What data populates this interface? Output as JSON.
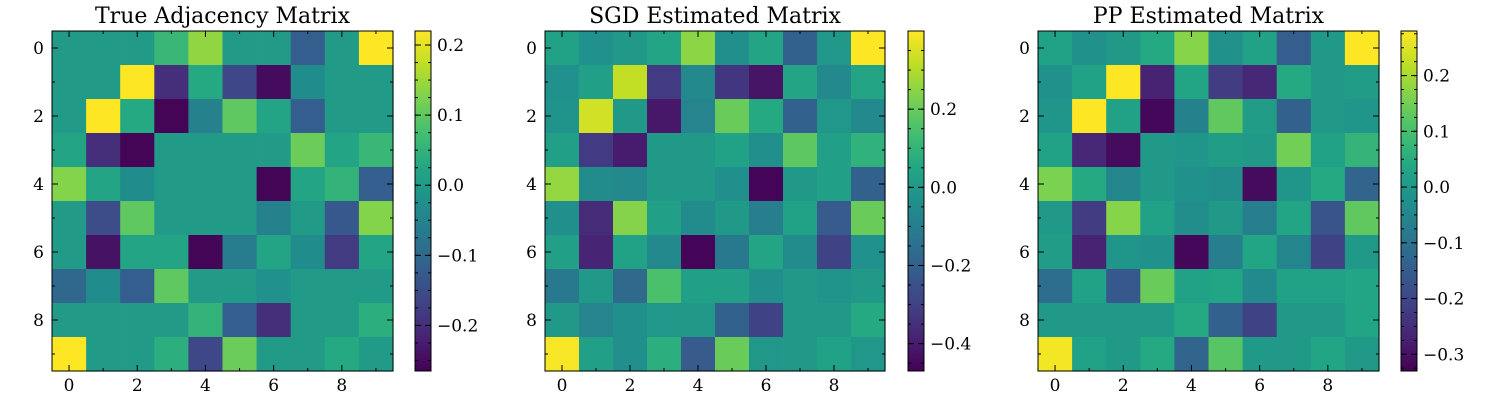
{
  "chart_data": [
    {
      "type": "heatmap",
      "title": "True Adjacency Matrix",
      "x_ticks": [
        "0",
        "2",
        "4",
        "6",
        "8"
      ],
      "y_ticks": [
        "0",
        "2",
        "4",
        "6",
        "8"
      ],
      "grid": false,
      "colormap": "viridis",
      "colorbar": {
        "vmin": -0.265,
        "vmax": 0.22,
        "ticks": [
          -0.2,
          -0.1,
          0.0,
          0.1,
          0.2
        ],
        "tick_labels": [
          "−0.2",
          "−0.1",
          "0.0",
          "0.1",
          "0.2"
        ]
      },
      "matrix": [
        [
          0,
          0,
          0,
          0.06,
          0.14,
          0,
          0,
          -0.12,
          0,
          0.22
        ],
        [
          0,
          0,
          0.22,
          -0.2,
          0.03,
          -0.16,
          -0.25,
          -0.03,
          0,
          0
        ],
        [
          0,
          0.22,
          0.03,
          -0.26,
          -0.05,
          0.1,
          0.02,
          -0.12,
          0,
          0
        ],
        [
          0.02,
          -0.2,
          -0.26,
          0,
          0,
          0,
          0,
          0.11,
          0.02,
          0.06
        ],
        [
          0.13,
          0.02,
          -0.03,
          0,
          0,
          0,
          -0.26,
          0.02,
          0.05,
          -0.12
        ],
        [
          0,
          -0.15,
          0.1,
          0,
          0,
          0,
          -0.05,
          0,
          -0.13,
          0.13
        ],
        [
          0,
          -0.24,
          0.02,
          0.02,
          -0.26,
          -0.06,
          0.02,
          -0.03,
          -0.18,
          0.02
        ],
        [
          -0.1,
          -0.03,
          -0.12,
          0.1,
          0,
          0,
          -0.02,
          0,
          0,
          0
        ],
        [
          0,
          0,
          0,
          0,
          0.05,
          -0.12,
          -0.2,
          0,
          0,
          0.04
        ],
        [
          0.22,
          0,
          0,
          0.04,
          -0.16,
          0.11,
          0,
          0,
          0.03,
          0
        ]
      ]
    },
    {
      "type": "heatmap",
      "title": "SGD Estimated Matrix",
      "x_ticks": [
        "0",
        "2",
        "4",
        "6",
        "8"
      ],
      "y_ticks": [
        "0",
        "2",
        "4",
        "6",
        "8"
      ],
      "grid": false,
      "colormap": "viridis",
      "colorbar": {
        "vmin": -0.47,
        "vmax": 0.4,
        "ticks": [
          -0.4,
          -0.2,
          0.0,
          0.2
        ],
        "tick_labels": [
          "−0.4",
          "−0.2",
          "0.0",
          "0.2"
        ]
      },
      "matrix": [
        [
          0.03,
          -0.03,
          0,
          0.04,
          0.25,
          -0.04,
          0.04,
          -0.2,
          -0.01,
          0.4
        ],
        [
          -0.03,
          0.02,
          0.32,
          -0.32,
          -0.06,
          -0.33,
          -0.42,
          0.04,
          -0.06,
          0.04
        ],
        [
          -0.02,
          0.34,
          0,
          -0.41,
          -0.08,
          0.2,
          0.06,
          -0.2,
          -0.01,
          -0.06
        ],
        [
          0.02,
          -0.32,
          -0.4,
          0,
          0,
          0.03,
          -0.04,
          0.18,
          0.02,
          0.09
        ],
        [
          0.26,
          -0.05,
          -0.06,
          0,
          0,
          -0.04,
          -0.46,
          0,
          0.02,
          -0.2
        ],
        [
          -0.04,
          -0.36,
          0.24,
          0.02,
          -0.05,
          0,
          -0.1,
          0.03,
          -0.22,
          0.2
        ],
        [
          0.02,
          -0.38,
          0.03,
          -0.06,
          -0.46,
          -0.12,
          0.04,
          -0.05,
          -0.3,
          -0.03
        ],
        [
          -0.12,
          0,
          -0.17,
          0.15,
          0.02,
          0.02,
          -0.04,
          0,
          -0.02,
          0
        ],
        [
          0,
          -0.08,
          -0.04,
          -0.01,
          0,
          -0.2,
          -0.3,
          0,
          0,
          0.06
        ],
        [
          0.39,
          0.02,
          -0.04,
          0.08,
          -0.22,
          0.2,
          -0.01,
          0,
          0.03,
          -0.01
        ]
      ]
    },
    {
      "type": "heatmap",
      "title": "PP Estimated Matrix",
      "x_ticks": [
        "0",
        "2",
        "4",
        "6",
        "8"
      ],
      "y_ticks": [
        "0",
        "2",
        "4",
        "6",
        "8"
      ],
      "grid": false,
      "colormap": "viridis",
      "colorbar": {
        "vmin": -0.33,
        "vmax": 0.28,
        "ticks": [
          -0.3,
          -0.2,
          -0.1,
          0.0,
          0.1,
          0.2
        ],
        "tick_labels": [
          "−0.3",
          "−0.2",
          "−0.1",
          "0.0",
          "0.1",
          "0.2"
        ]
      },
      "matrix": [
        [
          0.02,
          -0.02,
          0,
          0.04,
          0.17,
          -0.02,
          0.02,
          -0.15,
          0,
          0.28
        ],
        [
          -0.02,
          0.02,
          0.28,
          -0.27,
          0.03,
          -0.22,
          -0.26,
          0.04,
          0,
          0.01
        ],
        [
          -0.01,
          0.28,
          0.02,
          -0.32,
          -0.06,
          0.13,
          0.01,
          -0.14,
          0,
          -0.01
        ],
        [
          0.02,
          -0.26,
          -0.31,
          0,
          -0.01,
          0.01,
          0,
          0.15,
          0.02,
          0.07
        ],
        [
          0.16,
          0.04,
          -0.05,
          0,
          -0.02,
          -0.03,
          -0.31,
          -0.01,
          0.04,
          -0.13
        ],
        [
          0,
          -0.22,
          0.17,
          0.02,
          -0.03,
          0,
          -0.07,
          0.03,
          -0.17,
          0.13
        ],
        [
          0.01,
          -0.27,
          -0.01,
          -0.02,
          -0.32,
          -0.07,
          0.03,
          -0.05,
          -0.21,
          0
        ],
        [
          -0.11,
          0.02,
          -0.16,
          0.14,
          0.02,
          0.03,
          -0.04,
          0.02,
          0.02,
          0.03
        ],
        [
          0,
          0,
          0,
          0,
          0.04,
          -0.14,
          -0.21,
          0,
          0,
          0.03
        ],
        [
          0.27,
          0.02,
          0,
          0.04,
          -0.13,
          0.12,
          0,
          0,
          0.03,
          0
        ]
      ]
    }
  ]
}
